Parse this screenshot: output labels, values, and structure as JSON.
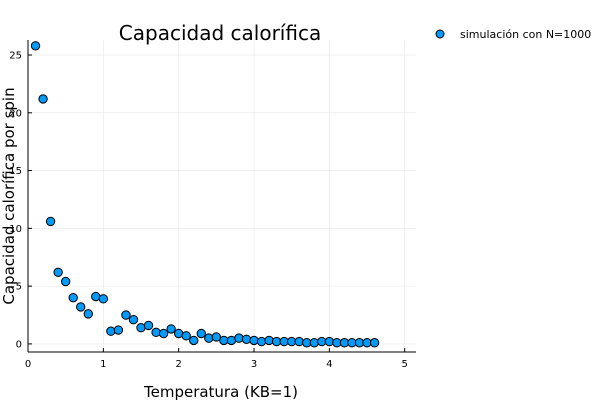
{
  "chart_data": {
    "type": "scatter",
    "title": "Capacidad calorífica",
    "xlabel": "Temperatura (KB=1)",
    "ylabel": "Capacidad calorífica por spin",
    "xlim": [
      0,
      5.15
    ],
    "ylim": [
      -0.7,
      26.3
    ],
    "xticks": [
      0,
      1,
      2,
      3,
      4,
      5
    ],
    "xtick_labels": [
      "0",
      "1",
      "2",
      "3",
      "4",
      "5"
    ],
    "yticks": [
      0,
      5,
      10,
      15,
      20,
      25
    ],
    "ytick_labels": [
      "0",
      "5",
      "10",
      "15",
      "20",
      "25"
    ],
    "grid": true,
    "legend_position": "top-right",
    "colors": {
      "series": "#009af9"
    },
    "series": [
      {
        "name": "simulación con N=1000",
        "x": [
          0.1,
          0.2,
          0.3,
          0.4,
          0.5,
          0.6,
          0.7,
          0.8,
          0.9,
          1.0,
          1.1,
          1.2,
          1.3,
          1.4,
          1.5,
          1.6,
          1.7,
          1.8,
          1.9,
          2.0,
          2.1,
          2.2,
          2.3,
          2.4,
          2.5,
          2.6,
          2.7,
          2.8,
          2.9,
          3.0,
          3.1,
          3.2,
          3.3,
          3.4,
          3.5,
          3.6,
          3.7,
          3.8,
          3.9,
          4.0,
          4.1,
          4.2,
          4.3,
          4.4,
          4.5,
          4.6
        ],
        "y": [
          25.8,
          21.2,
          10.6,
          6.2,
          5.4,
          4.0,
          3.2,
          2.6,
          4.1,
          3.9,
          1.1,
          1.2,
          2.5,
          2.1,
          1.4,
          1.6,
          1.0,
          0.9,
          1.3,
          0.9,
          0.7,
          0.3,
          0.9,
          0.5,
          0.6,
          0.3,
          0.3,
          0.5,
          0.4,
          0.3,
          0.2,
          0.3,
          0.2,
          0.2,
          0.2,
          0.2,
          0.1,
          0.1,
          0.2,
          0.2,
          0.1,
          0.1,
          0.1,
          0.1,
          0.1,
          0.1
        ]
      }
    ]
  }
}
